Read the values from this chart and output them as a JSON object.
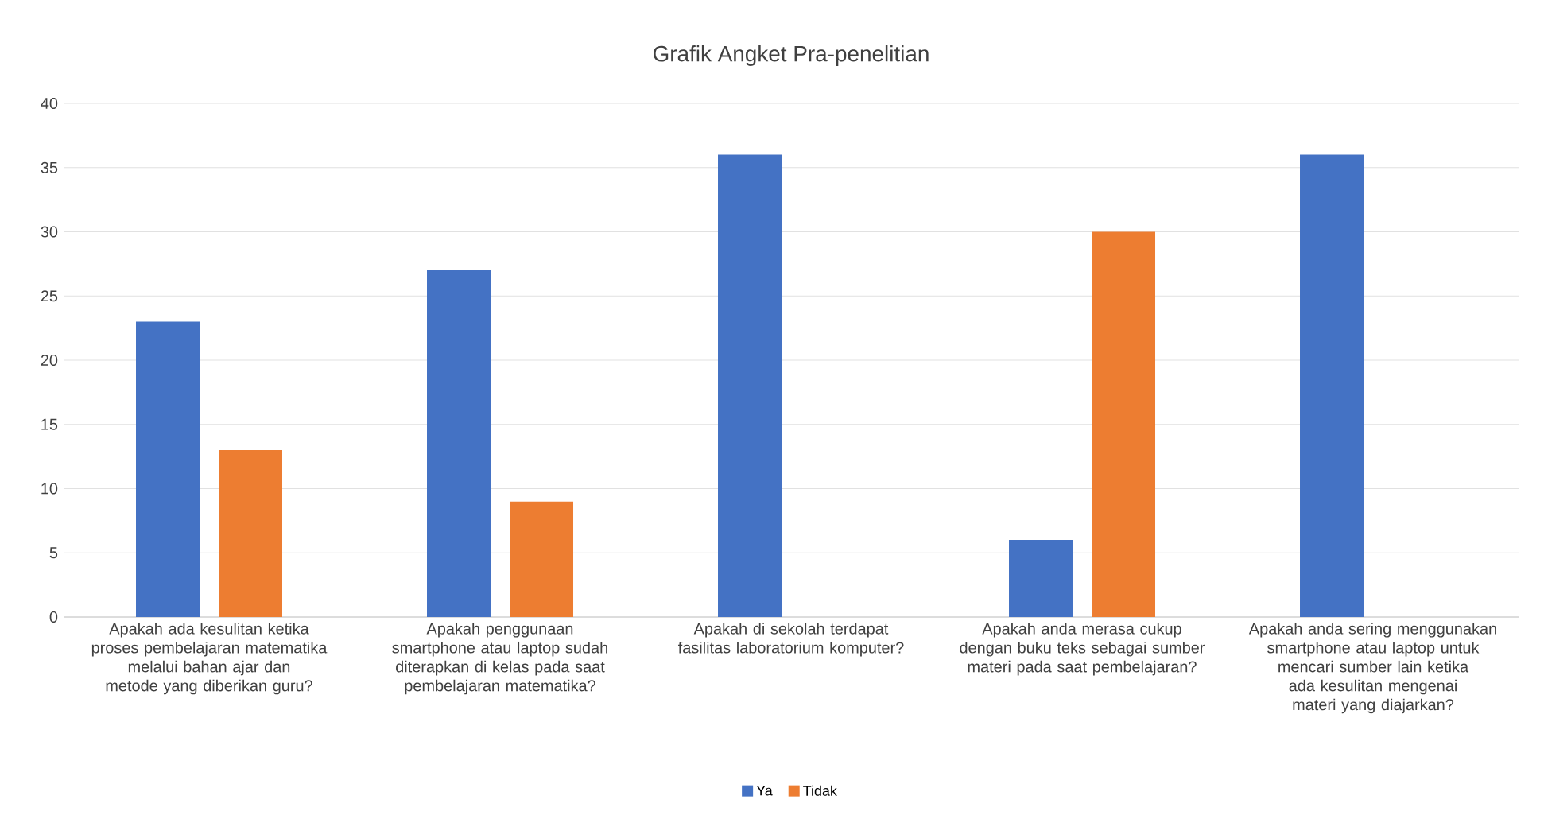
{
  "chart_data": {
    "type": "bar",
    "title": "Grafik Angket Pra-penelitian",
    "categories": [
      "Apakah ada kesulitan ketika proses pembelajaran matematika melalui bahan ajar dan metode yang diberikan guru?",
      "Apakah penggunaan smartphone atau laptop sudah diterapkan di kelas pada saat pembelajaran matematika?",
      "Apakah di sekolah terdapat fasilitas laboratorium komputer?",
      "Apakah anda merasa cukup dengan buku teks sebagai sumber materi pada saat pembelajaran?",
      "Apakah anda sering menggunakan smartphone atau laptop untuk mencari sumber lain ketika ada kesulitan mengenai materi yang diajarkan?"
    ],
    "series": [
      {
        "name": "Ya",
        "color": "#4472c4",
        "values": [
          23,
          27,
          36,
          6,
          36
        ]
      },
      {
        "name": "Tidak",
        "color": "#ed7d31",
        "values": [
          13,
          9,
          0,
          30,
          0
        ]
      }
    ],
    "ylim": [
      0,
      40
    ],
    "yticks": [
      0,
      5,
      10,
      15,
      20,
      25,
      30,
      35,
      40
    ],
    "grid": "y",
    "legend": "bottom"
  }
}
